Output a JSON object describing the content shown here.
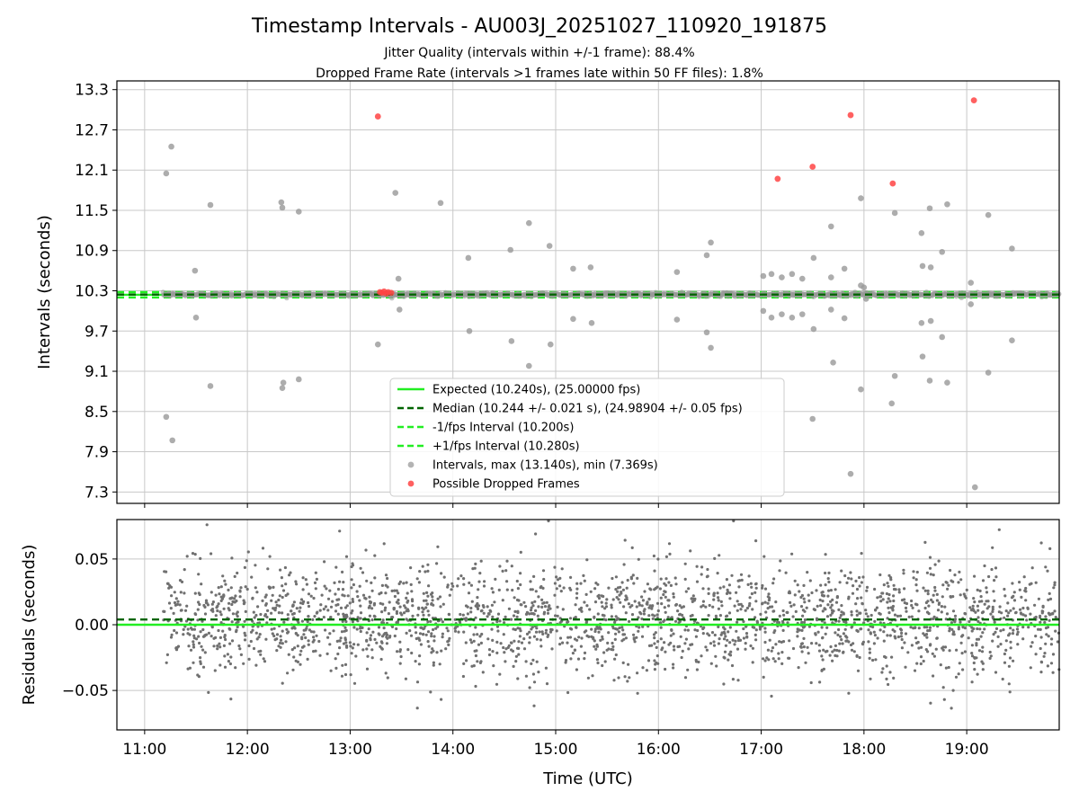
{
  "figure": {
    "title": "Timestamp Intervals - AU003J_20251027_110920_191875",
    "subtitle_line1": "Jitter Quality (intervals within +/-1 frame): 88.4%",
    "subtitle_line2": "Dropped Frame Rate (intervals >1 frames late within 50 FF files): 1.8%",
    "xlabel": "Time (UTC)"
  },
  "colors": {
    "expected": "#22ee22",
    "median": "#006400",
    "band": "#22ee22",
    "intervals": "#999999",
    "dropped": "#ff4444",
    "residuals": "#707070",
    "grid": "#c8c8c8"
  },
  "chart_data": [
    {
      "type": "scatter",
      "name": "intervals",
      "ylabel": "Intervals (seconds)",
      "xlim": [
        10.73,
        19.9
      ],
      "ylim": [
        7.13,
        13.43
      ],
      "xticks": [
        11,
        12,
        13,
        14,
        15,
        16,
        17,
        18,
        19
      ],
      "yticks": [
        7.3,
        7.9,
        8.5,
        9.1,
        9.7,
        10.3,
        10.9,
        11.5,
        12.1,
        12.7,
        13.3
      ],
      "ytick_labels": [
        "7.3",
        "7.9",
        "8.5",
        "9.1",
        "9.7",
        "10.3",
        "10.9",
        "11.5",
        "12.1",
        "12.7",
        "13.3"
      ],
      "grid": true,
      "lines": {
        "expected": 10.24,
        "median": 10.244,
        "minus1": 10.2,
        "plus1": 10.28
      },
      "legend": {
        "location": "lower-center",
        "entries": [
          "Expected (10.240s), (25.00000 fps)",
          "Median (10.244 +/- 0.021 s), (24.98904 +/- 0.05 fps)",
          "-1/fps Interval (10.200s)",
          "+1/fps Interval (10.280s)",
          "Intervals, max (13.140s), min (7.369s)",
          "Possible Dropped Frames"
        ]
      },
      "dense_band": {
        "center": 10.244,
        "spread": 0.025,
        "x_start": 11.18,
        "x_end": 19.9
      },
      "outliers": [
        [
          11.21,
          12.05
        ],
        [
          11.26,
          12.45
        ],
        [
          11.21,
          8.42
        ],
        [
          11.27,
          8.07
        ],
        [
          11.49,
          10.6
        ],
        [
          11.5,
          9.9
        ],
        [
          11.64,
          11.58
        ],
        [
          11.64,
          8.88
        ],
        [
          12.33,
          11.62
        ],
        [
          12.34,
          11.54
        ],
        [
          12.5,
          11.48
        ],
        [
          12.34,
          8.85
        ],
        [
          12.35,
          8.93
        ],
        [
          12.5,
          8.98
        ],
        [
          13.27,
          9.5
        ],
        [
          13.44,
          11.76
        ],
        [
          13.47,
          10.48
        ],
        [
          13.48,
          10.02
        ],
        [
          13.88,
          11.61
        ],
        [
          14.15,
          10.79
        ],
        [
          14.16,
          9.7
        ],
        [
          14.56,
          10.91
        ],
        [
          14.57,
          9.55
        ],
        [
          14.74,
          11.31
        ],
        [
          14.74,
          9.18
        ],
        [
          14.94,
          10.97
        ],
        [
          14.95,
          9.5
        ],
        [
          15.17,
          10.63
        ],
        [
          15.17,
          9.88
        ],
        [
          15.34,
          10.65
        ],
        [
          15.35,
          9.82
        ],
        [
          16.18,
          10.58
        ],
        [
          16.18,
          9.87
        ],
        [
          16.47,
          10.83
        ],
        [
          16.47,
          9.68
        ],
        [
          16.51,
          11.02
        ],
        [
          16.51,
          9.45
        ],
        [
          17.02,
          10.52
        ],
        [
          17.02,
          10.0
        ],
        [
          17.1,
          10.55
        ],
        [
          17.1,
          9.9
        ],
        [
          17.2,
          10.5
        ],
        [
          17.2,
          9.95
        ],
        [
          17.3,
          10.55
        ],
        [
          17.3,
          9.9
        ],
        [
          17.4,
          10.48
        ],
        [
          17.4,
          9.95
        ],
        [
          17.51,
          10.79
        ],
        [
          17.51,
          9.73
        ],
        [
          17.5,
          8.39
        ],
        [
          17.68,
          11.26
        ],
        [
          17.68,
          10.5
        ],
        [
          17.68,
          10.02
        ],
        [
          17.7,
          9.23
        ],
        [
          17.81,
          10.63
        ],
        [
          17.81,
          9.89
        ],
        [
          17.87,
          7.57
        ],
        [
          17.97,
          11.68
        ],
        [
          17.97,
          10.38
        ],
        [
          17.97,
          8.83
        ],
        [
          18.0,
          10.35
        ],
        [
          18.02,
          10.18
        ],
        [
          18.27,
          8.62
        ],
        [
          18.3,
          11.46
        ],
        [
          18.3,
          9.03
        ],
        [
          18.56,
          11.16
        ],
        [
          18.57,
          10.67
        ],
        [
          18.56,
          9.82
        ],
        [
          18.57,
          9.32
        ],
        [
          18.64,
          11.53
        ],
        [
          18.65,
          10.65
        ],
        [
          18.65,
          9.85
        ],
        [
          18.64,
          8.96
        ],
        [
          18.76,
          10.88
        ],
        [
          18.76,
          9.61
        ],
        [
          18.81,
          11.59
        ],
        [
          18.81,
          8.93
        ],
        [
          19.04,
          10.42
        ],
        [
          19.04,
          10.1
        ],
        [
          19.08,
          7.37
        ],
        [
          19.21,
          11.43
        ],
        [
          19.21,
          9.08
        ],
        [
          19.44,
          10.93
        ],
        [
          19.44,
          9.56
        ]
      ],
      "dropped_frames": [
        [
          13.27,
          12.9
        ],
        [
          17.16,
          11.97
        ],
        [
          17.5,
          12.15
        ],
        [
          17.87,
          12.92
        ],
        [
          18.28,
          11.9
        ],
        [
          19.07,
          13.14
        ],
        [
          13.29,
          10.28
        ],
        [
          13.31,
          10.27
        ],
        [
          13.33,
          10.29
        ],
        [
          13.35,
          10.26
        ],
        [
          13.37,
          10.28
        ],
        [
          13.4,
          10.27
        ]
      ]
    },
    {
      "type": "scatter",
      "name": "residuals",
      "ylabel": "Residuals (seconds)",
      "xlim": [
        10.73,
        19.9
      ],
      "ylim": [
        -0.08,
        0.08
      ],
      "xticks": [
        11,
        12,
        13,
        14,
        15,
        16,
        17,
        18,
        19
      ],
      "xtick_labels": [
        "11:00",
        "12:00",
        "13:00",
        "14:00",
        "15:00",
        "16:00",
        "17:00",
        "18:00",
        "19:00"
      ],
      "yticks": [
        -0.05,
        0.0,
        0.05
      ],
      "ytick_labels": [
        "−0.05",
        "0.00",
        "0.05"
      ],
      "grid": true,
      "lines": {
        "expected": 0.0,
        "median": 0.004
      },
      "cloud": {
        "x_start": 11.18,
        "x_end": 19.9,
        "center": 0.004,
        "spread": 0.021,
        "count": 2400
      }
    }
  ]
}
